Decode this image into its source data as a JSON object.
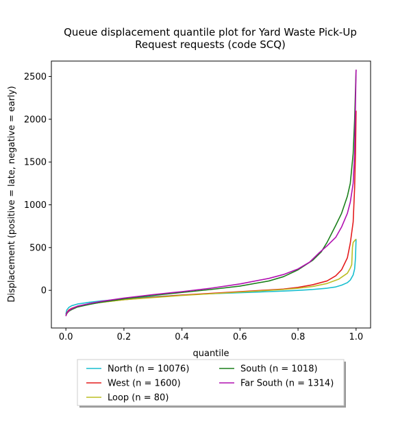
{
  "chart_data": {
    "type": "line",
    "title": [
      "Queue displacement quantile plot for Yard Waste Pick-Up",
      "Request  requests (code SCQ)"
    ],
    "xlabel": "quantile",
    "ylabel": "Displacement (positive = late, negative = early)",
    "xlim": [
      -0.05,
      1.05
    ],
    "ylim": [
      -440,
      2680
    ],
    "xticks": [
      0.0,
      0.2,
      0.4,
      0.6,
      0.8,
      1.0
    ],
    "xtick_labels": [
      "0.0",
      "0.2",
      "0.4",
      "0.6",
      "0.8",
      "1.0"
    ],
    "yticks": [
      0,
      500,
      1000,
      1500,
      2000,
      2500
    ],
    "ytick_labels": [
      "0",
      "500",
      "1000",
      "1500",
      "2000",
      "2500"
    ],
    "grid": false,
    "legend_placement": "below-center",
    "series": [
      {
        "name": "North (n = 10076)",
        "color": "#17becf",
        "points": [
          [
            0,
            -280
          ],
          [
            0.003,
            -230
          ],
          [
            0.01,
            -200
          ],
          [
            0.02,
            -180
          ],
          [
            0.04,
            -160
          ],
          [
            0.08,
            -140
          ],
          [
            0.12,
            -125
          ],
          [
            0.2,
            -100
          ],
          [
            0.3,
            -75
          ],
          [
            0.4,
            -55
          ],
          [
            0.5,
            -40
          ],
          [
            0.6,
            -28
          ],
          [
            0.7,
            -15
          ],
          [
            0.75,
            -8
          ],
          [
            0.8,
            0
          ],
          [
            0.85,
            10
          ],
          [
            0.9,
            25
          ],
          [
            0.93,
            40
          ],
          [
            0.95,
            60
          ],
          [
            0.97,
            90
          ],
          [
            0.98,
            120
          ],
          [
            0.99,
            180
          ],
          [
            0.995,
            250
          ],
          [
            0.998,
            380
          ],
          [
            1.0,
            600
          ]
        ]
      },
      {
        "name": "West (n = 1600)",
        "color": "#e41a1c",
        "points": [
          [
            0,
            -300
          ],
          [
            0.003,
            -260
          ],
          [
            0.01,
            -230
          ],
          [
            0.02,
            -210
          ],
          [
            0.04,
            -185
          ],
          [
            0.08,
            -160
          ],
          [
            0.12,
            -140
          ],
          [
            0.2,
            -110
          ],
          [
            0.3,
            -80
          ],
          [
            0.4,
            -55
          ],
          [
            0.5,
            -35
          ],
          [
            0.6,
            -15
          ],
          [
            0.7,
            5
          ],
          [
            0.75,
            15
          ],
          [
            0.8,
            35
          ],
          [
            0.85,
            65
          ],
          [
            0.9,
            110
          ],
          [
            0.93,
            170
          ],
          [
            0.95,
            240
          ],
          [
            0.97,
            380
          ],
          [
            0.98,
            550
          ],
          [
            0.99,
            800
          ],
          [
            0.995,
            1200
          ],
          [
            0.998,
            1600
          ],
          [
            1.0,
            2100
          ]
        ]
      },
      {
        "name": "Loop (n = 80)",
        "color": "#bcbd22",
        "points": [
          [
            0,
            -290
          ],
          [
            0.01,
            -240
          ],
          [
            0.025,
            -210
          ],
          [
            0.05,
            -180
          ],
          [
            0.1,
            -150
          ],
          [
            0.2,
            -110
          ],
          [
            0.3,
            -85
          ],
          [
            0.4,
            -60
          ],
          [
            0.5,
            -40
          ],
          [
            0.6,
            -20
          ],
          [
            0.7,
            0
          ],
          [
            0.75,
            10
          ],
          [
            0.8,
            25
          ],
          [
            0.85,
            45
          ],
          [
            0.9,
            80
          ],
          [
            0.94,
            130
          ],
          [
            0.97,
            200
          ],
          [
            0.98,
            260
          ],
          [
            0.985,
            300
          ],
          [
            0.9875,
            500
          ],
          [
            0.99,
            560
          ],
          [
            0.995,
            580
          ],
          [
            1.0,
            600
          ]
        ]
      },
      {
        "name": "South (n = 1018)",
        "color": "#1a7f1a",
        "points": [
          [
            0,
            -300
          ],
          [
            0.003,
            -270
          ],
          [
            0.01,
            -245
          ],
          [
            0.02,
            -225
          ],
          [
            0.04,
            -195
          ],
          [
            0.08,
            -165
          ],
          [
            0.12,
            -140
          ],
          [
            0.2,
            -100
          ],
          [
            0.3,
            -60
          ],
          [
            0.4,
            -25
          ],
          [
            0.5,
            10
          ],
          [
            0.6,
            50
          ],
          [
            0.7,
            110
          ],
          [
            0.75,
            160
          ],
          [
            0.8,
            240
          ],
          [
            0.85,
            350
          ],
          [
            0.88,
            450
          ],
          [
            0.9,
            560
          ],
          [
            0.93,
            760
          ],
          [
            0.95,
            900
          ],
          [
            0.97,
            1100
          ],
          [
            0.98,
            1250
          ],
          [
            0.99,
            1600
          ],
          [
            0.995,
            2000
          ],
          [
            1.0,
            2580
          ]
        ]
      },
      {
        "name": "Far South (n = 1314)",
        "color": "#b00fb0",
        "points": [
          [
            0,
            -300
          ],
          [
            0.003,
            -265
          ],
          [
            0.01,
            -240
          ],
          [
            0.02,
            -215
          ],
          [
            0.04,
            -185
          ],
          [
            0.08,
            -155
          ],
          [
            0.12,
            -130
          ],
          [
            0.2,
            -90
          ],
          [
            0.3,
            -50
          ],
          [
            0.4,
            -15
          ],
          [
            0.5,
            25
          ],
          [
            0.6,
            75
          ],
          [
            0.7,
            140
          ],
          [
            0.75,
            185
          ],
          [
            0.8,
            250
          ],
          [
            0.84,
            330
          ],
          [
            0.87,
            430
          ],
          [
            0.9,
            520
          ],
          [
            0.93,
            620
          ],
          [
            0.95,
            740
          ],
          [
            0.97,
            900
          ],
          [
            0.98,
            1030
          ],
          [
            0.99,
            1250
          ],
          [
            0.995,
            1600
          ],
          [
            1.0,
            2580
          ]
        ]
      }
    ]
  }
}
